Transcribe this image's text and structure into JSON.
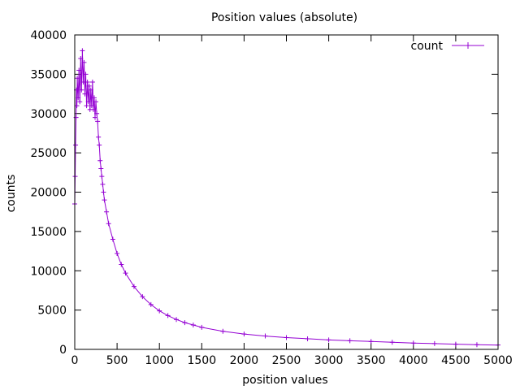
{
  "chart_data": {
    "type": "line",
    "title": "Position values (absolute)",
    "xlabel": "position values",
    "ylabel": "counts",
    "xlim": [
      0,
      5000
    ],
    "ylim": [
      0,
      40000
    ],
    "xticks": [
      0,
      500,
      1000,
      1500,
      2000,
      2500,
      3000,
      3500,
      4000,
      4500,
      5000
    ],
    "yticks": [
      0,
      5000,
      10000,
      15000,
      20000,
      25000,
      30000,
      35000,
      40000
    ],
    "grid": false,
    "legend_position": "top-right",
    "series": [
      {
        "name": "count",
        "color": "#9400d3",
        "marker": "plus",
        "x": [
          0,
          5,
          10,
          15,
          20,
          25,
          30,
          40,
          50,
          60,
          70,
          80,
          90,
          100,
          110,
          120,
          130,
          140,
          150,
          160,
          170,
          180,
          190,
          200,
          210,
          220,
          230,
          240,
          250,
          260,
          270,
          280,
          290,
          300,
          310,
          320,
          330,
          340,
          350,
          375,
          400,
          450,
          500,
          550,
          600,
          700,
          800,
          900,
          1000,
          1100,
          1200,
          1300,
          1400,
          1500,
          1750,
          2000,
          2250,
          2500,
          2750,
          3000,
          3250,
          3500,
          3750,
          4000,
          4250,
          4500,
          4750,
          5000
        ],
        "y": [
          18500,
          22000,
          26000,
          29500,
          33000,
          31000,
          34500,
          32000,
          35500,
          31500,
          37000,
          33000,
          38000,
          34000,
          36500,
          32500,
          35000,
          31000,
          34000,
          31500,
          33500,
          30500,
          33000,
          31000,
          34000,
          30500,
          32000,
          29500,
          31500,
          30000,
          29000,
          27000,
          26000,
          24000,
          23000,
          22000,
          21000,
          20000,
          19000,
          17500,
          16000,
          14000,
          12200,
          10800,
          9700,
          8000,
          6700,
          5700,
          4900,
          4300,
          3800,
          3400,
          3100,
          2800,
          2300,
          1950,
          1700,
          1500,
          1350,
          1200,
          1100,
          1000,
          900,
          800,
          730,
          660,
          600,
          550
        ]
      }
    ]
  }
}
